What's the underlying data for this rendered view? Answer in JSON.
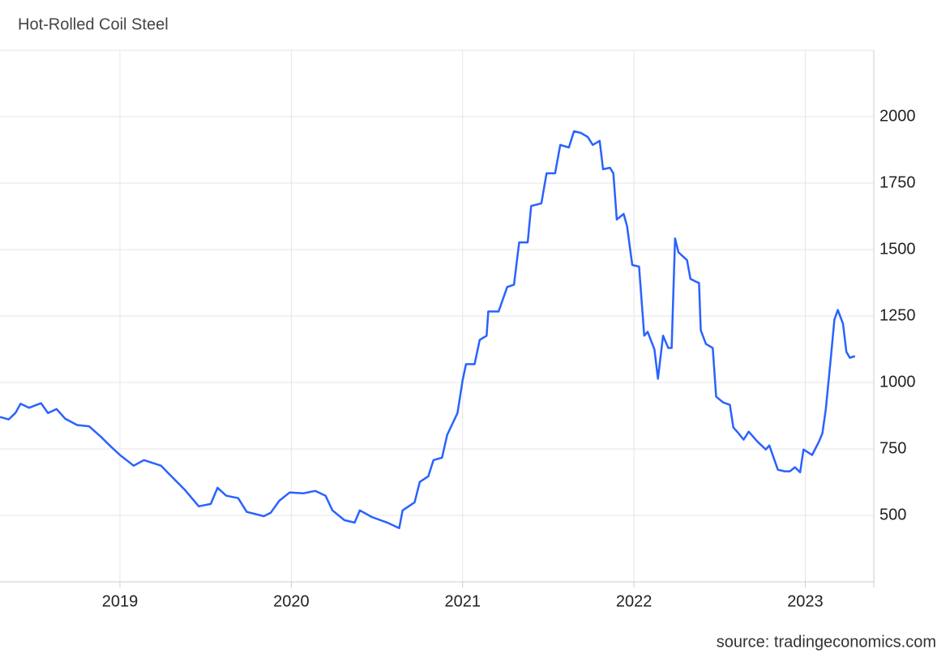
{
  "chart_data": {
    "type": "line",
    "title": "Hot-Rolled Coil Steel",
    "source": "source: tradingeconomics.com",
    "color": "#2962ff",
    "x": [
      2018.3,
      2018.35,
      2018.39,
      2018.42,
      2018.47,
      2018.54,
      2018.58,
      2018.63,
      2018.68,
      2018.75,
      2018.82,
      2018.89,
      2018.94,
      2019.0,
      2019.08,
      2019.14,
      2019.24,
      2019.3,
      2019.38,
      2019.46,
      2019.53,
      2019.57,
      2019.62,
      2019.69,
      2019.74,
      2019.84,
      2019.88,
      2019.93,
      2019.99,
      2020.07,
      2020.14,
      2020.2,
      2020.24,
      2020.31,
      2020.37,
      2020.4,
      2020.47,
      2020.56,
      2020.63,
      2020.65,
      2020.72,
      2020.75,
      2020.8,
      2020.83,
      2020.88,
      2020.91,
      2020.97,
      2021.0,
      2021.02,
      2021.07,
      2021.1,
      2021.14,
      2021.15,
      2021.21,
      2021.26,
      2021.3,
      2021.33,
      2021.38,
      2021.4,
      2021.46,
      2021.49,
      2021.54,
      2021.57,
      2021.62,
      2021.65,
      2021.69,
      2021.73,
      2021.76,
      2021.8,
      2021.82,
      2021.86,
      2021.88,
      2021.9,
      2021.94,
      2021.96,
      2021.99,
      2022.03,
      2022.06,
      2022.08,
      2022.12,
      2022.14,
      2022.17,
      2022.2,
      2022.22,
      2022.24,
      2022.26,
      2022.31,
      2022.33,
      2022.36,
      2022.38,
      2022.39,
      2022.42,
      2022.46,
      2022.48,
      2022.52,
      2022.56,
      2022.58,
      2022.61,
      2022.64,
      2022.67,
      2022.72,
      2022.77,
      2022.79,
      2022.84,
      2022.88,
      2022.91,
      2022.94,
      2022.97,
      2022.99,
      2023.04,
      2023.08,
      2023.1,
      2023.12,
      2023.15,
      2023.17,
      2023.19,
      2023.22,
      2023.24,
      2023.26,
      2023.29
    ],
    "values": [
      870,
      861,
      885,
      920,
      905,
      922,
      885,
      900,
      864,
      840,
      835,
      795,
      763,
      727,
      687,
      708,
      687,
      647,
      595,
      534,
      543,
      604,
      574,
      565,
      513,
      497,
      510,
      555,
      586,
      583,
      592,
      574,
      519,
      482,
      473,
      519,
      494,
      473,
      452,
      519,
      549,
      626,
      647,
      708,
      717,
      803,
      885,
      1008,
      1069,
      1069,
      1160,
      1176,
      1267,
      1267,
      1359,
      1368,
      1527,
      1527,
      1664,
      1674,
      1787,
      1787,
      1894,
      1884,
      1945,
      1939,
      1924,
      1894,
      1909,
      1802,
      1808,
      1787,
      1613,
      1634,
      1588,
      1442,
      1436,
      1176,
      1191,
      1124,
      1014,
      1176,
      1130,
      1130,
      1542,
      1490,
      1460,
      1390,
      1380,
      1374,
      1197,
      1145,
      1130,
      947,
      925,
      916,
      831,
      809,
      785,
      815,
      778,
      748,
      763,
      672,
      666,
      666,
      681,
      662,
      748,
      727,
      778,
      809,
      900,
      1099,
      1237,
      1273,
      1221,
      1115,
      1093,
      1099
    ],
    "xlim": [
      2018.3,
      2023.4
    ],
    "xticks": [
      2019,
      2020,
      2021,
      2022,
      2023
    ],
    "ylim": [
      250,
      2250
    ],
    "yticks": [
      500,
      750,
      1000,
      1250,
      1500,
      1750,
      2000
    ],
    "grid": true
  }
}
